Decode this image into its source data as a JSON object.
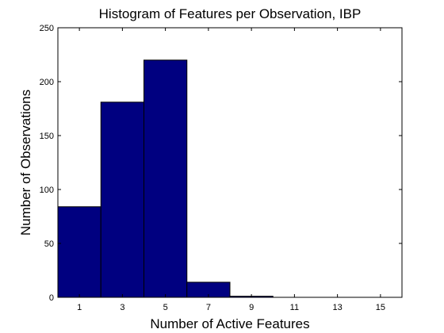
{
  "chart_data": {
    "type": "bar",
    "title": "Histogram of Features per Observation, IBP",
    "xlabel": "Number of Active Features",
    "ylabel": "Number of Observations",
    "bin_edges": [
      0,
      2,
      4,
      6,
      8,
      10,
      12,
      14,
      16
    ],
    "values": [
      84,
      181,
      220,
      14,
      1,
      0,
      0,
      0
    ],
    "xlim": [
      0,
      16
    ],
    "ylim": [
      0,
      250
    ],
    "xticks": [
      1,
      3,
      5,
      7,
      9,
      11,
      13,
      15
    ],
    "yticks": [
      0,
      50,
      100,
      150,
      200,
      250
    ],
    "grid": false,
    "bar_color": "#000080",
    "edge_color": "#000000"
  }
}
